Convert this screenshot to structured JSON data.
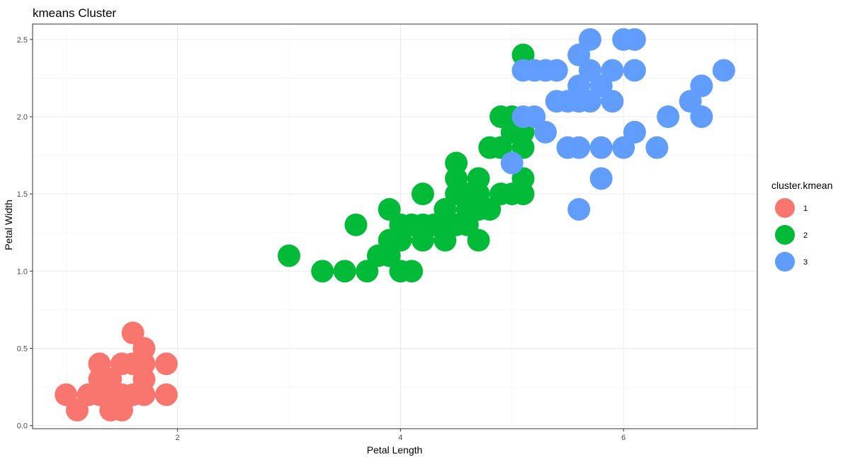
{
  "chart_data": {
    "type": "scatter",
    "title": "kmeans Cluster",
    "xlabel": "Petal Length",
    "ylabel": "Petal Width",
    "xlim": [
      0.7,
      7.2
    ],
    "ylim": [
      -0.02,
      2.6
    ],
    "x_ticks": [
      2,
      4,
      6
    ],
    "x_tick_labels": [
      "2",
      "4",
      "6"
    ],
    "y_ticks": [
      0.0,
      0.5,
      1.0,
      1.5,
      2.0,
      2.5
    ],
    "y_tick_labels": [
      "0.0",
      "0.5",
      "1.0",
      "1.5",
      "2.0",
      "2.5"
    ],
    "grid": true,
    "legend": {
      "title": "cluster.kmean",
      "position": "right",
      "entries": [
        {
          "label": "1",
          "color": "#F8766D"
        },
        {
          "label": "2",
          "color": "#00BA38"
        },
        {
          "label": "3",
          "color": "#619CFF"
        }
      ]
    },
    "series": [
      {
        "name": "1",
        "color": "#F8766D",
        "points": [
          [
            1.0,
            0.2
          ],
          [
            1.1,
            0.1
          ],
          [
            1.2,
            0.2
          ],
          [
            1.3,
            0.2
          ],
          [
            1.3,
            0.3
          ],
          [
            1.3,
            0.4
          ],
          [
            1.4,
            0.1
          ],
          [
            1.4,
            0.2
          ],
          [
            1.4,
            0.3
          ],
          [
            1.5,
            0.1
          ],
          [
            1.5,
            0.2
          ],
          [
            1.5,
            0.4
          ],
          [
            1.6,
            0.2
          ],
          [
            1.6,
            0.4
          ],
          [
            1.6,
            0.6
          ],
          [
            1.7,
            0.2
          ],
          [
            1.7,
            0.3
          ],
          [
            1.7,
            0.4
          ],
          [
            1.7,
            0.5
          ],
          [
            1.9,
            0.2
          ],
          [
            1.9,
            0.4
          ]
        ]
      },
      {
        "name": "2",
        "color": "#00BA38",
        "points": [
          [
            3.0,
            1.1
          ],
          [
            3.3,
            1.0
          ],
          [
            3.5,
            1.0
          ],
          [
            3.6,
            1.3
          ],
          [
            3.7,
            1.0
          ],
          [
            3.8,
            1.1
          ],
          [
            3.9,
            1.1
          ],
          [
            3.9,
            1.2
          ],
          [
            3.9,
            1.4
          ],
          [
            4.0,
            1.0
          ],
          [
            4.0,
            1.2
          ],
          [
            4.0,
            1.3
          ],
          [
            4.1,
            1.0
          ],
          [
            4.1,
            1.3
          ],
          [
            4.2,
            1.2
          ],
          [
            4.2,
            1.3
          ],
          [
            4.2,
            1.5
          ],
          [
            4.3,
            1.3
          ],
          [
            4.4,
            1.2
          ],
          [
            4.4,
            1.3
          ],
          [
            4.4,
            1.4
          ],
          [
            4.5,
            1.3
          ],
          [
            4.5,
            1.5
          ],
          [
            4.5,
            1.6
          ],
          [
            4.5,
            1.7
          ],
          [
            4.6,
            1.3
          ],
          [
            4.6,
            1.4
          ],
          [
            4.6,
            1.5
          ],
          [
            4.7,
            1.2
          ],
          [
            4.7,
            1.4
          ],
          [
            4.7,
            1.5
          ],
          [
            4.7,
            1.6
          ],
          [
            4.8,
            1.4
          ],
          [
            4.8,
            1.8
          ],
          [
            4.9,
            1.5
          ],
          [
            4.9,
            1.8
          ],
          [
            4.9,
            2.0
          ],
          [
            5.0,
            1.5
          ],
          [
            5.0,
            1.9
          ],
          [
            5.0,
            2.0
          ],
          [
            5.1,
            1.5
          ],
          [
            5.1,
            1.6
          ],
          [
            5.1,
            1.8
          ],
          [
            5.1,
            1.9
          ],
          [
            5.1,
            2.4
          ]
        ]
      },
      {
        "name": "3",
        "color": "#619CFF",
        "points": [
          [
            5.0,
            1.7
          ],
          [
            5.1,
            2.0
          ],
          [
            5.1,
            2.3
          ],
          [
            5.2,
            2.0
          ],
          [
            5.2,
            2.3
          ],
          [
            5.3,
            1.9
          ],
          [
            5.3,
            2.3
          ],
          [
            5.4,
            2.1
          ],
          [
            5.4,
            2.3
          ],
          [
            5.5,
            1.8
          ],
          [
            5.5,
            2.1
          ],
          [
            5.6,
            1.4
          ],
          [
            5.6,
            1.8
          ],
          [
            5.6,
            2.1
          ],
          [
            5.6,
            2.2
          ],
          [
            5.6,
            2.4
          ],
          [
            5.7,
            2.1
          ],
          [
            5.7,
            2.3
          ],
          [
            5.7,
            2.5
          ],
          [
            5.8,
            1.6
          ],
          [
            5.8,
            1.8
          ],
          [
            5.8,
            2.2
          ],
          [
            5.9,
            2.1
          ],
          [
            5.9,
            2.3
          ],
          [
            6.0,
            1.8
          ],
          [
            6.0,
            2.5
          ],
          [
            6.1,
            1.9
          ],
          [
            6.1,
            2.3
          ],
          [
            6.1,
            2.5
          ],
          [
            6.3,
            1.8
          ],
          [
            6.4,
            2.0
          ],
          [
            6.6,
            2.1
          ],
          [
            6.7,
            2.0
          ],
          [
            6.7,
            2.2
          ],
          [
            6.9,
            2.3
          ]
        ]
      }
    ]
  }
}
